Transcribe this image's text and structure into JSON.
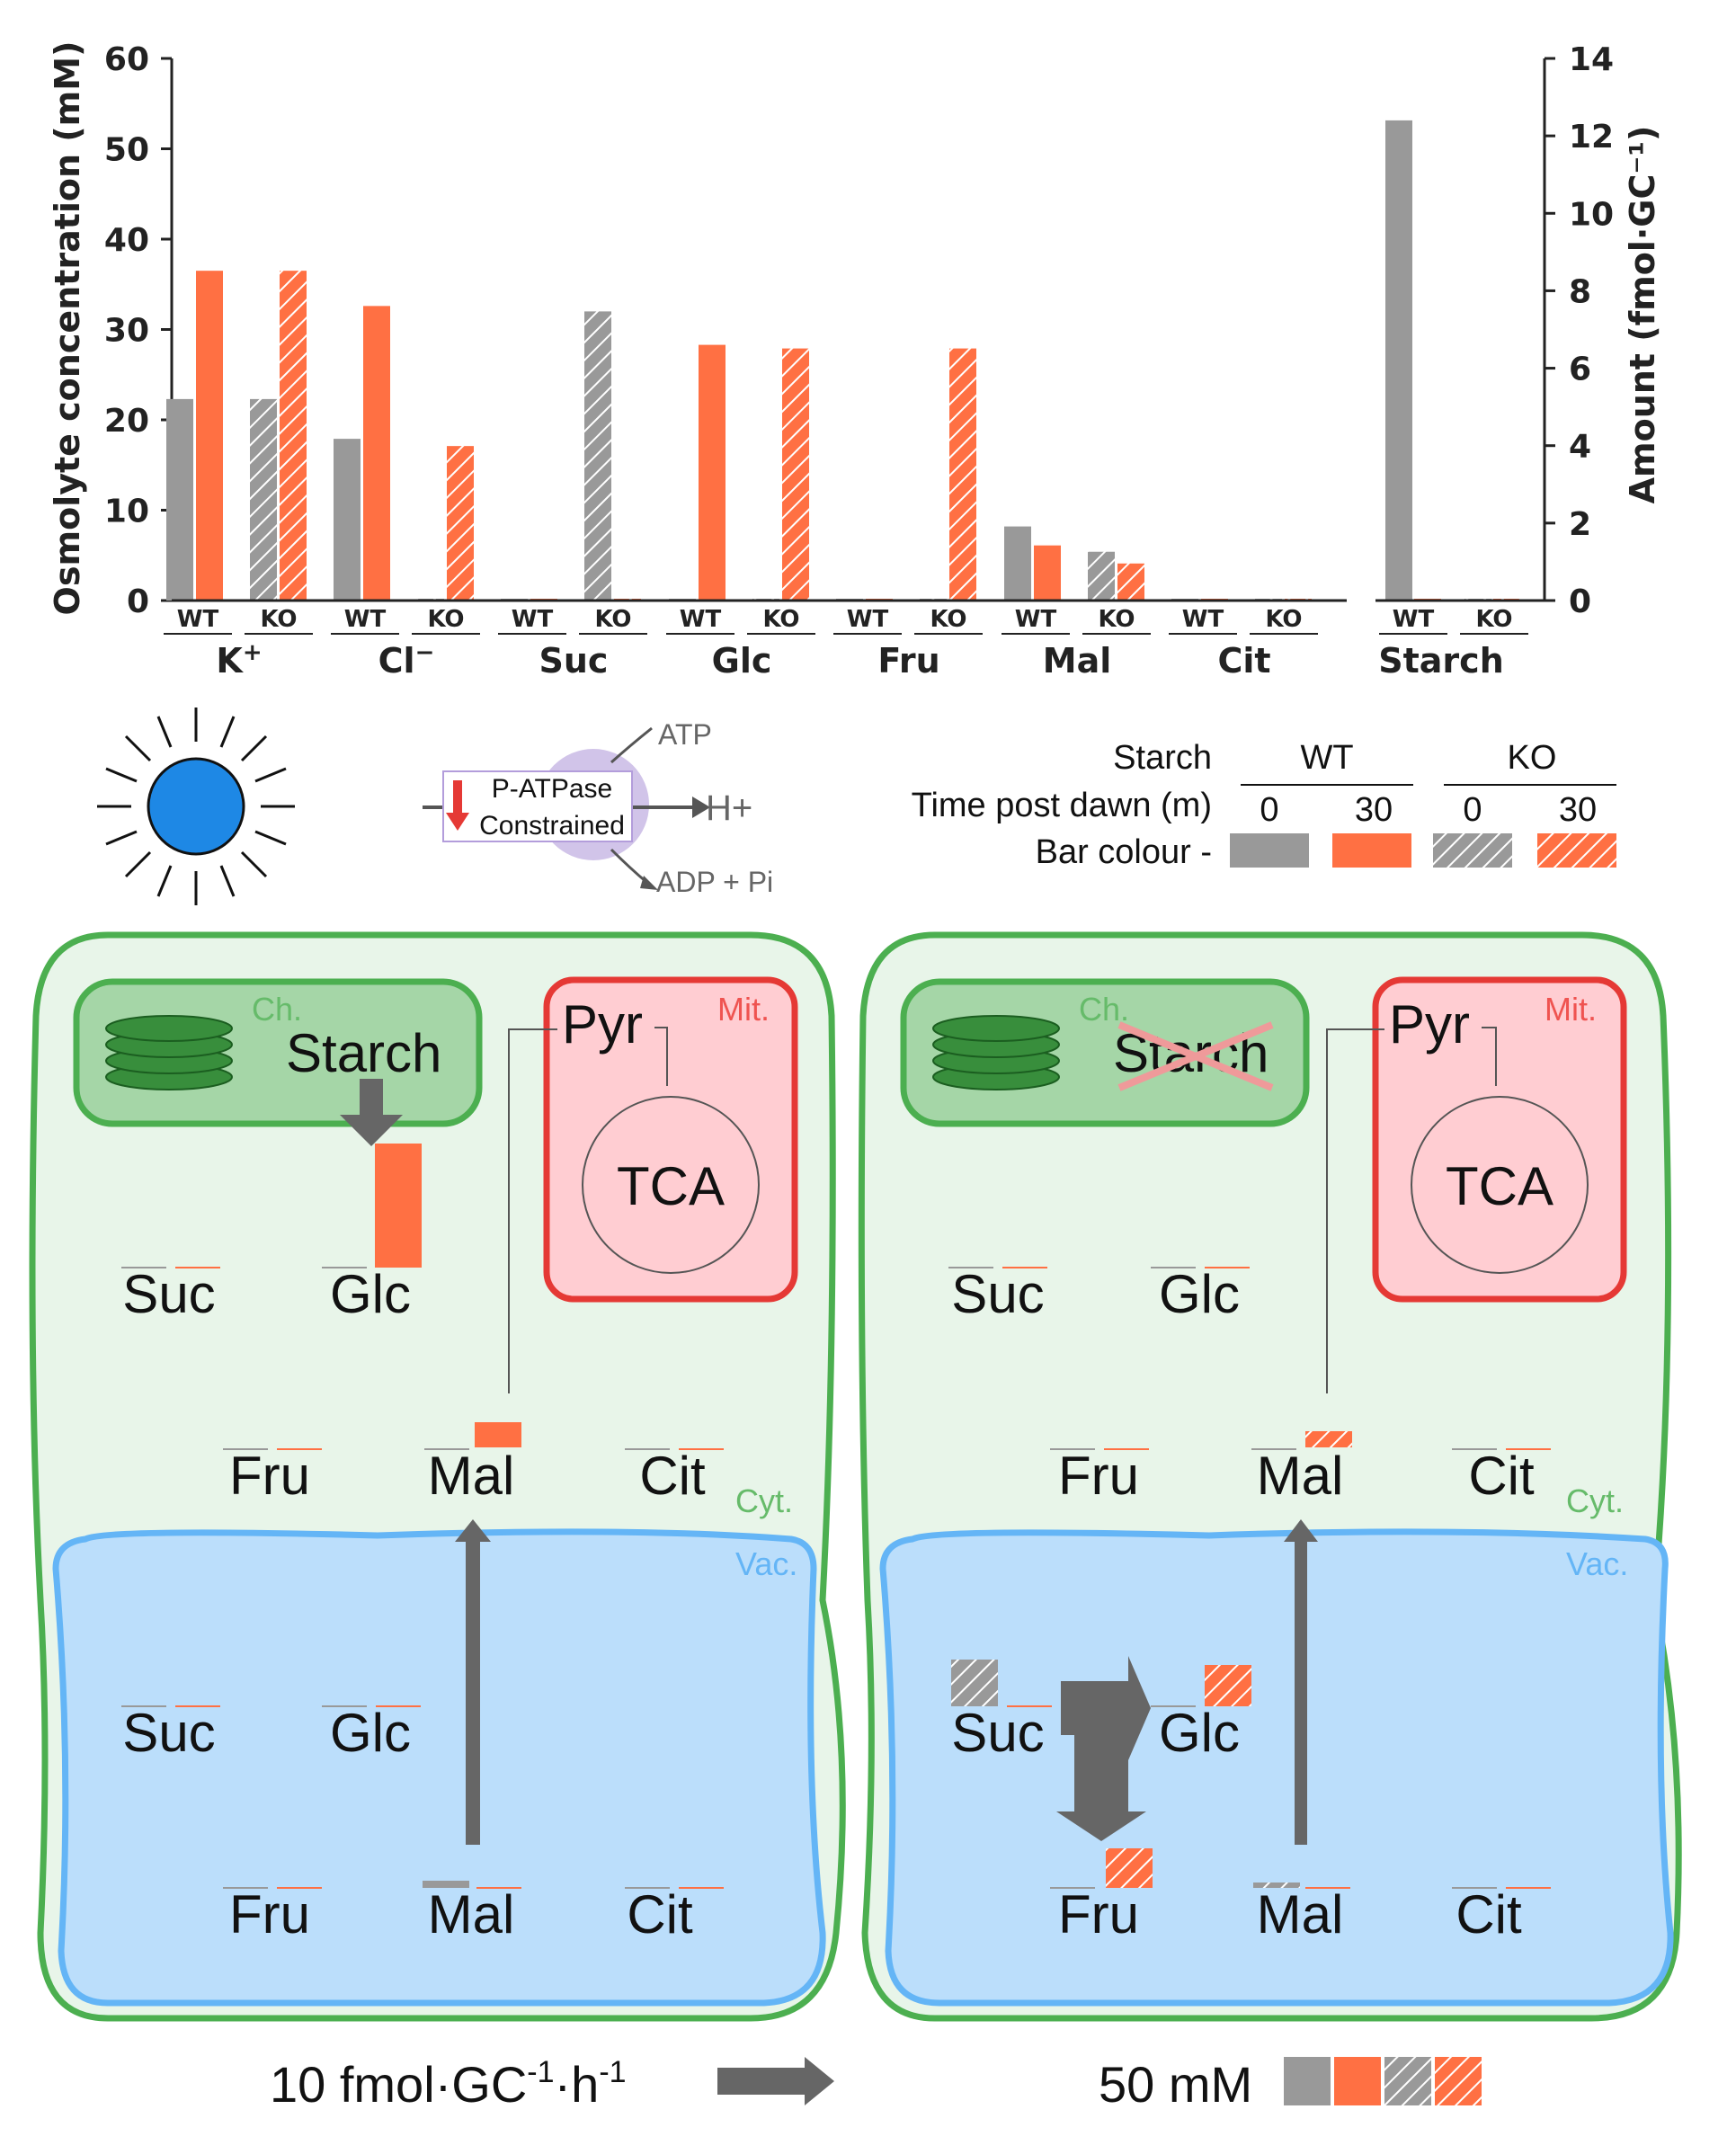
{
  "chart_data": {
    "type": "bar",
    "groups": [
      "K$^+$",
      "Cl$^-$",
      "Suc",
      "Glc",
      "Fru",
      "Mal",
      "Cit",
      "Starch"
    ],
    "group_labels": [
      {
        "base": "K",
        "sup": "+"
      },
      {
        "base": "Cl",
        "sup": "−"
      },
      {
        "base": "Suc",
        "sup": ""
      },
      {
        "base": "Glc",
        "sup": ""
      },
      {
        "base": "Fru",
        "sup": ""
      },
      {
        "base": "Mal",
        "sup": ""
      },
      {
        "base": "Cit",
        "sup": ""
      },
      {
        "base": "Starch",
        "sup": ""
      }
    ],
    "subgroups": [
      "WT",
      "KO"
    ],
    "series": [
      {
        "genotype": "WT",
        "time": "0",
        "values": [
          22.3,
          17.9,
          0,
          0,
          0,
          8.2,
          0,
          12.4
        ]
      },
      {
        "genotype": "WT",
        "time": "30",
        "values": [
          36.5,
          32.6,
          0,
          28.3,
          0,
          6.1,
          0,
          0
        ]
      },
      {
        "genotype": "KO",
        "time": "0",
        "values": [
          22.3,
          0,
          32.0,
          0,
          0,
          5.4,
          0,
          0
        ]
      },
      {
        "genotype": "KO",
        "time": "30",
        "values": [
          36.5,
          17.1,
          0,
          27.9,
          27.9,
          4.1,
          0,
          0
        ]
      }
    ],
    "ylabel": "Osmolyte concentration (mM)",
    "ylim": [
      0,
      60
    ],
    "yticks": [
      0,
      10,
      20,
      30,
      40,
      50,
      60
    ],
    "y2label": "Amount (fmol·GC⁻¹)",
    "y2lim": [
      0,
      14
    ],
    "y2ticks": [
      0,
      2,
      4,
      6,
      8,
      10,
      12,
      14
    ],
    "starch_axis": "right",
    "colors": {
      "grey": "#999999",
      "orange": "#ff7043"
    },
    "pattern": "KO bars hatched"
  },
  "legend": {
    "title": "Starch",
    "wt": "WT",
    "ko": "KO",
    "time_label": "Time post dawn (m)",
    "times": [
      "0",
      "30",
      "0",
      "30"
    ],
    "bar_colour_label": "Bar colour -"
  },
  "pump": {
    "atp": "ATP",
    "label_line1": "P-ATPase",
    "label_line2": "Constrained",
    "proton": "H+",
    "products": "ADP + Pi"
  },
  "cells": {
    "chloroplast": "Ch.",
    "mitochondrion": "Mit.",
    "cytosol": "Cyt.",
    "vacuole": "Vac.",
    "starch": "Starch",
    "pyr": "Pyr",
    "tca": "TCA",
    "suc": "Suc",
    "glc": "Glc",
    "fru": "Fru",
    "mal": "Mal",
    "cit": "Cit"
  },
  "scale": {
    "flux": "10 fmol·GC⁻¹·h⁻¹",
    "flux_base": "10 fmol·GC",
    "flux_sup1": "-1",
    "flux_mid": "·h",
    "flux_sup2": "-1",
    "conc": "50 mM"
  }
}
